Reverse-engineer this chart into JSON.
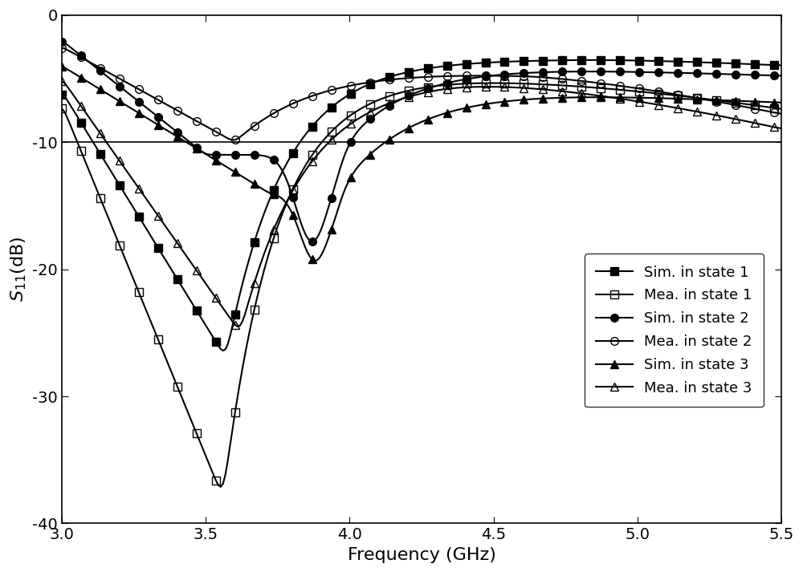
{
  "xlabel": "Frequency (GHz)",
  "ylabel": "S$_{11}$(dB)",
  "xlim": [
    3.0,
    5.5
  ],
  "ylim": [
    -40,
    0
  ],
  "yticks": [
    -40,
    -30,
    -20,
    -10,
    0
  ],
  "xticks": [
    3.0,
    3.5,
    4.0,
    4.5,
    5.0,
    5.5
  ],
  "hline_y": -10,
  "background_color": "#ffffff",
  "series": {
    "sim_state1": {
      "label": "Sim. in state 1",
      "marker": "s",
      "markersize": 6,
      "filled": true
    },
    "mea_state1": {
      "label": "Mea. in state 1",
      "marker": "s",
      "markersize": 6,
      "filled": false
    },
    "sim_state2": {
      "label": "Sim. in state 2",
      "marker": "o",
      "markersize": 6,
      "filled": true
    },
    "mea_state2": {
      "label": "Mea. in state 2",
      "marker": "o",
      "markersize": 6,
      "filled": false
    },
    "sim_state3": {
      "label": "Sim. in state 3",
      "marker": "^",
      "markersize": 6,
      "filled": true
    },
    "mea_state3": {
      "label": "Mea. in state 3",
      "marker": "^",
      "markersize": 6,
      "filled": false
    }
  }
}
